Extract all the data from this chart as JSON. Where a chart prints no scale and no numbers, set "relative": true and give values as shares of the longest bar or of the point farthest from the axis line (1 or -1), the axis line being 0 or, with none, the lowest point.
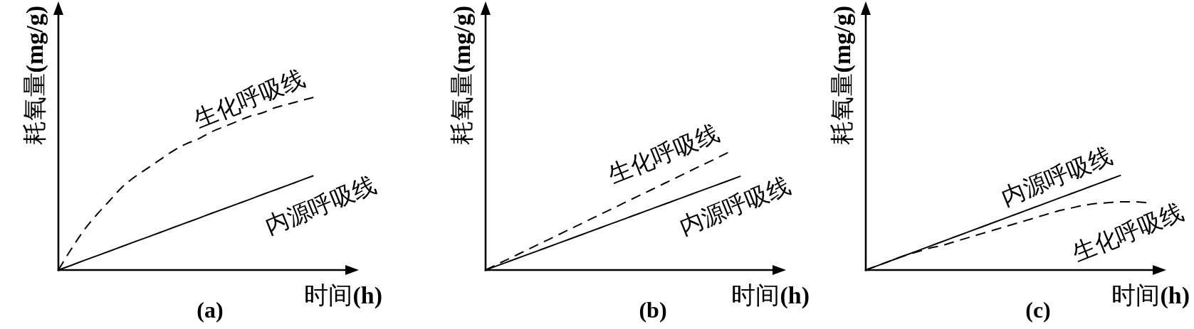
{
  "chart_data": [
    {
      "type": "line",
      "title": "(a)",
      "xlabel": "时间(h)",
      "ylabel": "耗氧量(mg/g)",
      "relative": true,
      "categories": [
        null,
        null,
        null,
        null,
        null,
        null,
        null,
        null,
        null,
        null,
        null,
        null,
        null,
        null,
        null,
        null,
        null,
        null,
        null,
        null,
        null,
        null,
        null
      ],
      "series": [
        {
          "name": "生化呼吸线",
          "color": "#000000",
          "line_style": "dashed",
          "values": [
            0,
            0.12,
            0.23,
            0.32,
            0.4,
            0.48,
            0.54,
            0.59,
            0.64,
            0.69,
            0.73,
            0.76,
            0.8,
            0.83,
            0.86,
            0.89,
            0.91,
            0.94,
            0.96,
            0.98,
            1,
            null,
            null
          ]
        },
        {
          "name": "内源呼吸线",
          "color": "#000000",
          "line_style": "solid",
          "values": [
            0,
            0.027,
            0.055,
            0.082,
            0.109,
            0.137,
            0.164,
            0.191,
            0.218,
            0.246,
            0.273,
            0.3,
            0.328,
            0.355,
            0.382,
            0.409,
            0.437,
            0.464,
            0.491,
            0.519,
            0.546,
            null,
            null
          ]
        }
      ]
    },
    {
      "type": "line",
      "title": "(b)",
      "xlabel": "时间(h)",
      "ylabel": "耗氧量(mg/g)",
      "relative": true,
      "categories": [
        null,
        null,
        null,
        null,
        null,
        null,
        null,
        null,
        null,
        null,
        null,
        null,
        null,
        null,
        null,
        null,
        null,
        null,
        null,
        null,
        null,
        null,
        null
      ],
      "series": [
        {
          "name": "生化呼吸线",
          "color": "#000000",
          "line_style": "dashed",
          "values": [
            0,
            0.053,
            0.105,
            0.158,
            0.211,
            0.263,
            0.316,
            0.368,
            0.421,
            0.474,
            0.526,
            0.579,
            0.632,
            0.684,
            0.737,
            0.789,
            0.842,
            0.895,
            0.947,
            1,
            null,
            null,
            null
          ]
        },
        {
          "name": "内源呼吸线",
          "color": "#000000",
          "line_style": "solid",
          "values": [
            0,
            0.04,
            0.08,
            0.12,
            0.16,
            0.2,
            0.24,
            0.28,
            0.32,
            0.36,
            0.4,
            0.44,
            0.48,
            0.52,
            0.56,
            0.6,
            0.64,
            0.68,
            0.72,
            0.76,
            0.8,
            null,
            null
          ]
        }
      ]
    },
    {
      "type": "line",
      "title": "(c)",
      "xlabel": "时间(h)",
      "ylabel": "耗氧量(mg/g)",
      "relative": true,
      "categories": [
        null,
        null,
        null,
        null,
        null,
        null,
        null,
        null,
        null,
        null,
        null,
        null,
        null,
        null,
        null,
        null,
        null,
        null,
        null,
        null,
        null,
        null,
        null
      ],
      "series": [
        {
          "name": "生化呼吸线",
          "color": "#000000",
          "line_style": "dashed",
          "values": [
            0,
            0.05,
            0.1,
            0.15,
            0.19,
            0.23,
            0.26,
            0.3,
            0.34,
            0.38,
            0.42,
            0.46,
            0.5,
            0.54,
            0.58,
            0.62,
            0.65,
            0.68,
            0.7,
            0.71,
            0.72,
            0.72,
            0.71
          ]
        },
        {
          "name": "内源呼吸线",
          "color": "#000000",
          "line_style": "solid",
          "values": [
            0,
            0.05,
            0.1,
            0.15,
            0.2,
            0.25,
            0.3,
            0.35,
            0.4,
            0.45,
            0.5,
            0.55,
            0.6,
            0.65,
            0.7,
            0.75,
            0.8,
            0.85,
            0.9,
            0.95,
            1.0,
            null,
            null
          ]
        }
      ]
    }
  ]
}
